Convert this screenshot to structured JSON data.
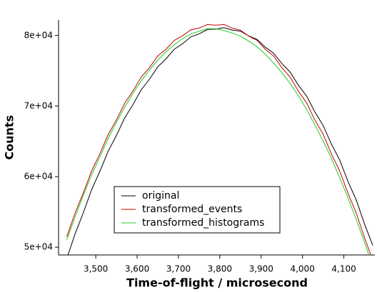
{
  "chart_data": {
    "type": "line",
    "xlabel": "Time-of-flight / microsecond",
    "ylabel": "Counts",
    "x": [
      3430,
      3450,
      3470,
      3490,
      3510,
      3530,
      3550,
      3570,
      3590,
      3610,
      3630,
      3650,
      3670,
      3690,
      3710,
      3730,
      3750,
      3770,
      3790,
      3810,
      3830,
      3850,
      3870,
      3890,
      3910,
      3930,
      3950,
      3970,
      3990,
      4010,
      4030,
      4050,
      4070,
      4090,
      4110,
      4130,
      4150,
      4170
    ],
    "series": [
      {
        "name": "original",
        "color": "#000000",
        "values": [
          48430,
          51900,
          54880,
          58150,
          60760,
          63600,
          65850,
          68330,
          70200,
          72300,
          73820,
          75560,
          76700,
          78050,
          78830,
          79800,
          80220,
          80850,
          80900,
          81100,
          80780,
          80620,
          79930,
          79450,
          78350,
          77500,
          76020,
          74820,
          72950,
          71400,
          69150,
          67250,
          64600,
          62350,
          59300,
          56700,
          53300,
          50250
        ]
      },
      {
        "name": "transformed_events",
        "color": "#c00000",
        "values": [
          51480,
          54850,
          57700,
          60800,
          63250,
          65950,
          68050,
          70400,
          72150,
          74100,
          75450,
          77100,
          78050,
          79300,
          79950,
          80800,
          81050,
          81550,
          81450,
          81550,
          81050,
          80750,
          79900,
          79300,
          78050,
          77100,
          75450,
          74100,
          72100,
          70450,
          68000,
          66000,
          63200,
          60800,
          57650,
          54850,
          51350,
          48150
        ]
      },
      {
        "name": "transformed_histograms",
        "color": "#22cc22",
        "values": [
          51050,
          54300,
          57350,
          60250,
          62800,
          65400,
          67700,
          69850,
          71800,
          73550,
          75100,
          76500,
          77700,
          78700,
          79550,
          80200,
          80600,
          80950,
          80950,
          80700,
          80350,
          79900,
          79200,
          78400,
          77350,
          76100,
          74750,
          73200,
          71450,
          69500,
          67350,
          65050,
          62550,
          59850,
          56950,
          53950,
          50700,
          47300
        ]
      }
    ],
    "xlim": [
      3410,
      4175
    ],
    "ylim": [
      48900,
      82200
    ],
    "xticks": [
      {
        "value": 3500,
        "label": "3,500"
      },
      {
        "value": 3600,
        "label": "3,600"
      },
      {
        "value": 3700,
        "label": "3,700"
      },
      {
        "value": 3800,
        "label": "3,800"
      },
      {
        "value": 3900,
        "label": "3,900"
      },
      {
        "value": 4000,
        "label": "4,000"
      },
      {
        "value": 4100,
        "label": "4,100"
      }
    ],
    "yticks": [
      {
        "value": 50000,
        "label": "5e+04"
      },
      {
        "value": 60000,
        "label": "6e+04"
      },
      {
        "value": 70000,
        "label": "7e+04"
      },
      {
        "value": 80000,
        "label": "8e+04"
      }
    ],
    "legend": "lower center"
  }
}
